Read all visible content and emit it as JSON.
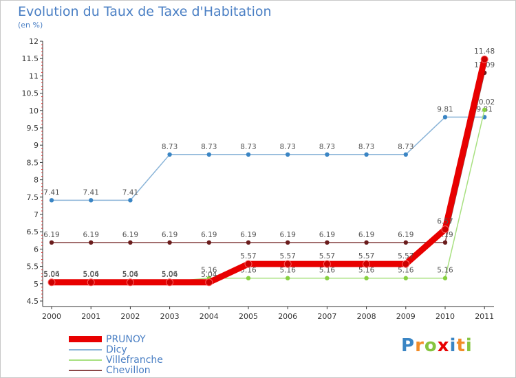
{
  "chart_data": {
    "type": "line",
    "title": "Evolution du Taux de Taxe d'Habitation",
    "unit_label": "(en %)",
    "xlabel": "",
    "ylabel": "",
    "ylim": [
      4.5,
      12
    ],
    "y_ticks": [
      "4.5",
      "5",
      "5.5",
      "6",
      "6.5",
      "7",
      "7.5",
      "8",
      "8.5",
      "9",
      "9.5",
      "10",
      "10.5",
      "11",
      "11.5",
      "12"
    ],
    "categories": [
      "2000",
      "2001",
      "2002",
      "2003",
      "2004",
      "2005",
      "2006",
      "2007",
      "2008",
      "2009",
      "2010",
      "2011"
    ],
    "grid": false,
    "series": [
      {
        "name": "PRUNOY",
        "color": "#e80000",
        "point_color": "#cc0000",
        "values": [
          5.04,
          5.04,
          5.04,
          5.04,
          5.04,
          5.57,
          5.57,
          5.57,
          5.57,
          5.57,
          6.57,
          11.48
        ],
        "labels": [
          "5.04",
          "5.04",
          "5.04",
          "5.04",
          "5.04",
          "5.57",
          "5.57",
          "5.57",
          "5.57",
          "5.57",
          "6.57",
          "11.48"
        ]
      },
      {
        "name": "Dicy",
        "color": "#8ab4d8",
        "point_color": "#3a85c4",
        "values": [
          7.41,
          7.41,
          7.41,
          8.73,
          8.73,
          8.73,
          8.73,
          8.73,
          8.73,
          8.73,
          9.81,
          9.81
        ],
        "labels": [
          "7.41",
          "7.41",
          "7.41",
          "8.73",
          "8.73",
          "8.73",
          "8.73",
          "8.73",
          "8.73",
          "8.73",
          "9.81",
          "9.81"
        ]
      },
      {
        "name": "Villefranche",
        "color": "#a8e080",
        "point_color": "#86d040",
        "values": [
          5.06,
          5.06,
          5.06,
          5.06,
          5.16,
          5.16,
          5.16,
          5.16,
          5.16,
          5.16,
          5.16,
          10.02
        ],
        "labels": [
          "5.06",
          "5.06",
          "5.06",
          "5.06",
          "5.16",
          "5.16",
          "5.16",
          "5.16",
          "5.16",
          "5.16",
          "5.16",
          "10.02"
        ]
      },
      {
        "name": "Chevillon",
        "color": "#8a4848",
        "point_color": "#6a1c1c",
        "values": [
          6.19,
          6.19,
          6.19,
          6.19,
          6.19,
          6.19,
          6.19,
          6.19,
          6.19,
          6.19,
          6.19,
          11.09
        ],
        "labels": [
          "6.19",
          "6.19",
          "6.19",
          "6.19",
          "6.19",
          "6.19",
          "6.19",
          "6.19",
          "6.19",
          "6.19",
          "6.19",
          "11.09"
        ]
      }
    ]
  },
  "logo": {
    "letters": [
      "P",
      "r",
      "o",
      "x",
      "i",
      "t",
      "i"
    ],
    "colors": [
      "#3a85c4",
      "#f28c28",
      "#86c440",
      "#e80000",
      "#3a85c4",
      "#f28c28",
      "#86c440"
    ]
  }
}
